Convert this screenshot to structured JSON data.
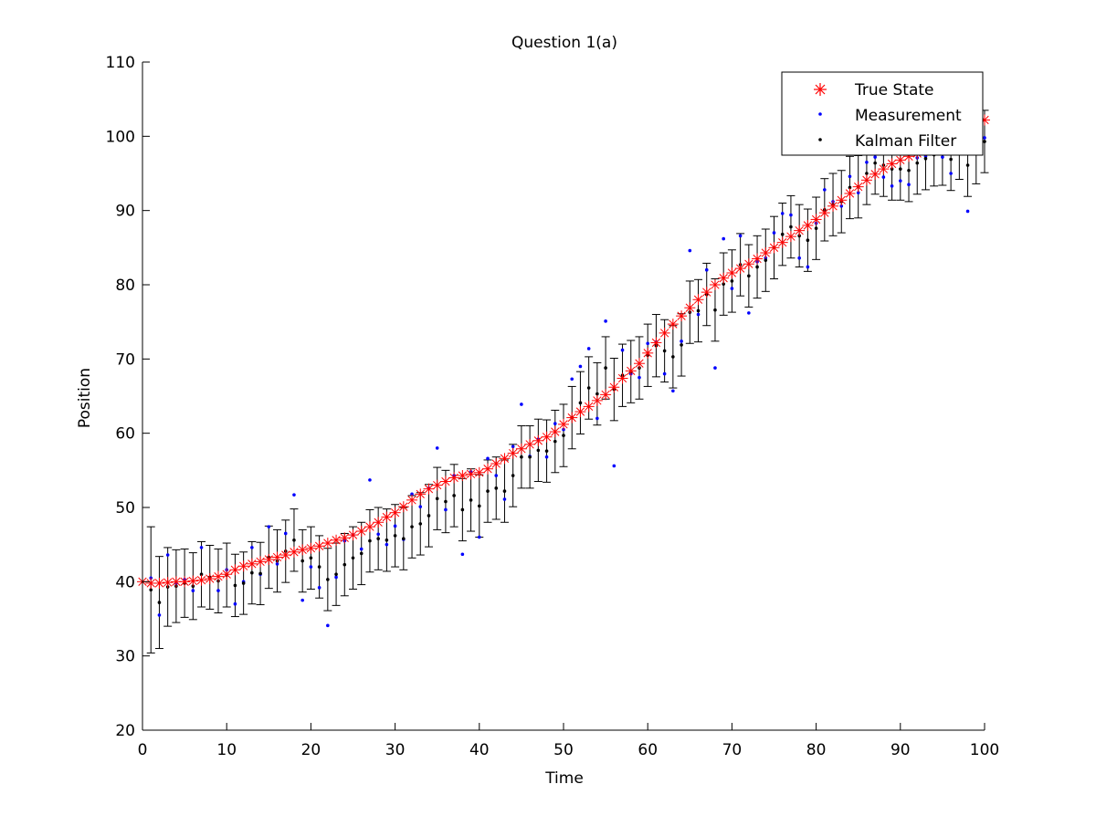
{
  "chart_data": {
    "type": "scatter",
    "title": "Question 1(a)",
    "xlabel": "Time",
    "ylabel": "Position",
    "xlim": [
      0,
      100
    ],
    "ylim": [
      20,
      110
    ],
    "xticks": [
      "0",
      "10",
      "20",
      "30",
      "40",
      "50",
      "60",
      "70",
      "80",
      "90",
      "100"
    ],
    "yticks": [
      "20",
      "30",
      "40",
      "50",
      "60",
      "70",
      "80",
      "90",
      "100",
      "110"
    ],
    "grid": false,
    "legend_position": "top-right",
    "series": [
      {
        "name": "True State",
        "marker": "asterisk",
        "color": "#ff0000",
        "x": [
          0,
          1,
          2,
          3,
          4,
          5,
          6,
          7,
          8,
          9,
          10,
          11,
          12,
          13,
          14,
          15,
          16,
          17,
          18,
          19,
          20,
          21,
          22,
          23,
          24,
          25,
          26,
          27,
          28,
          29,
          30,
          31,
          32,
          33,
          34,
          35,
          36,
          37,
          38,
          39,
          40,
          41,
          42,
          43,
          44,
          45,
          46,
          47,
          48,
          49,
          50,
          51,
          52,
          53,
          54,
          55,
          56,
          57,
          58,
          59,
          60,
          61,
          62,
          63,
          64,
          65,
          66,
          67,
          68,
          69,
          70,
          71,
          72,
          73,
          74,
          75,
          76,
          77,
          78,
          79,
          80,
          81,
          82,
          83,
          84,
          85,
          86,
          87,
          88,
          89,
          90,
          91,
          92,
          93,
          94,
          95,
          96,
          97,
          98,
          99,
          100
        ],
        "y": [
          40,
          39.8,
          39.8,
          39.9,
          40.0,
          40.0,
          40.1,
          40.2,
          40.4,
          40.7,
          41.0,
          41.6,
          42.1,
          42.4,
          42.7,
          43.0,
          43.3,
          43.6,
          44.0,
          44.3,
          44.5,
          44.8,
          45.2,
          45.6,
          45.9,
          46.3,
          46.8,
          47.4,
          48.0,
          48.7,
          49.3,
          50.1,
          51.0,
          51.8,
          52.5,
          53.0,
          53.5,
          54.0,
          54.3,
          54.5,
          54.7,
          55.2,
          55.9,
          56.6,
          57.3,
          57.9,
          58.5,
          59.0,
          59.5,
          60.2,
          61.2,
          62.1,
          62.9,
          63.6,
          64.4,
          65.2,
          66.2,
          67.4,
          68.4,
          69.4,
          70.8,
          72.2,
          73.5,
          74.7,
          75.8,
          76.9,
          78.0,
          79.0,
          80.0,
          80.9,
          81.6,
          82.2,
          82.8,
          83.5,
          84.3,
          85.0,
          85.7,
          86.5,
          87.3,
          88.0,
          88.8,
          89.7,
          90.6,
          91.4,
          92.3,
          93.2,
          94.1,
          94.9,
          95.6,
          96.3,
          96.8,
          97.3,
          97.7,
          98.1,
          98.5,
          98.9,
          99.4,
          100.0,
          100.7,
          101.4,
          102.2
        ]
      },
      {
        "name": "Measurement",
        "marker": "dot",
        "color": "#0000ff",
        "x": [
          1,
          2,
          3,
          4,
          5,
          6,
          7,
          8,
          9,
          10,
          11,
          12,
          13,
          14,
          15,
          16,
          17,
          18,
          19,
          20,
          21,
          22,
          23,
          24,
          25,
          26,
          27,
          28,
          29,
          30,
          31,
          32,
          33,
          34,
          35,
          36,
          37,
          38,
          39,
          40,
          41,
          42,
          43,
          44,
          45,
          46,
          47,
          48,
          49,
          50,
          51,
          52,
          53,
          54,
          55,
          56,
          57,
          58,
          59,
          60,
          61,
          62,
          63,
          64,
          65,
          66,
          67,
          68,
          69,
          70,
          71,
          72,
          73,
          74,
          75,
          76,
          77,
          78,
          79,
          80,
          81,
          82,
          83,
          84,
          85,
          86,
          87,
          88,
          89,
          90,
          91,
          92,
          93,
          94,
          95,
          96,
          97,
          98,
          99,
          100
        ],
        "y": [
          40.5,
          35.5,
          43.6,
          39.8,
          40.3,
          38.8,
          44.6,
          40.5,
          38.8,
          41.6,
          37.0,
          40.0,
          44.6,
          41.0,
          47.4,
          42.4,
          46.5,
          51.7,
          37.5,
          42.0,
          39.2,
          34.1,
          40.6,
          45.5,
          46.3,
          44.4,
          53.7,
          46.4,
          45.0,
          47.5,
          45.7,
          51.8,
          50.1,
          52.6,
          58.0,
          49.7,
          54.3,
          43.7,
          54.8,
          46.0,
          56.6,
          54.3,
          51.1,
          58.2,
          63.9,
          56.9,
          59.2,
          56.8,
          61.3,
          60.5,
          67.3,
          69.0,
          71.4,
          62.0,
          75.1,
          55.6,
          71.2,
          68.0,
          67.5,
          72.1,
          72.3,
          68.0,
          65.7,
          72.4,
          84.6,
          76.0,
          82.0,
          68.8,
          86.2,
          79.5,
          86.6,
          76.2,
          83.1,
          83.6,
          87.0,
          89.6,
          89.4,
          83.6,
          82.4,
          88.3,
          92.8,
          91.2,
          90.6,
          94.6,
          92.4,
          96.5,
          97.2,
          94.5,
          93.3,
          94.0,
          93.5,
          97.1,
          97.3,
          97.6,
          97.2,
          95.0,
          99.3,
          89.9,
          99.5,
          99.8
        ]
      },
      {
        "name": "Kalman Filter",
        "marker": "dot",
        "color": "#000000",
        "error_bars": true,
        "x": [
          1,
          2,
          3,
          4,
          5,
          6,
          7,
          8,
          9,
          10,
          11,
          12,
          13,
          14,
          15,
          16,
          17,
          18,
          19,
          20,
          21,
          22,
          23,
          24,
          25,
          26,
          27,
          28,
          29,
          30,
          31,
          32,
          33,
          34,
          35,
          36,
          37,
          38,
          39,
          40,
          41,
          42,
          43,
          44,
          45,
          46,
          47,
          48,
          49,
          50,
          51,
          52,
          53,
          54,
          55,
          56,
          57,
          58,
          59,
          60,
          61,
          62,
          63,
          64,
          65,
          66,
          67,
          68,
          69,
          70,
          71,
          72,
          73,
          74,
          75,
          76,
          77,
          78,
          79,
          80,
          81,
          82,
          83,
          84,
          85,
          86,
          87,
          88,
          89,
          90,
          91,
          92,
          93,
          94,
          95,
          96,
          97,
          98,
          99,
          100
        ],
        "y": [
          38.9,
          37.2,
          39.3,
          39.4,
          39.8,
          39.4,
          41.0,
          40.6,
          40.1,
          40.9,
          39.5,
          39.8,
          41.2,
          41.1,
          43.3,
          42.8,
          44.1,
          45.6,
          42.8,
          43.2,
          42.0,
          40.3,
          41.0,
          42.3,
          43.2,
          43.8,
          45.5,
          45.8,
          45.6,
          46.2,
          45.8,
          47.4,
          47.8,
          48.9,
          51.2,
          50.8,
          51.6,
          49.7,
          51.0,
          50.2,
          52.2,
          52.6,
          52.2,
          54.3,
          56.8,
          56.8,
          57.7,
          57.6,
          58.9,
          59.7,
          62.1,
          64.1,
          66.1,
          65.3,
          68.8,
          65.9,
          67.8,
          68.3,
          68.8,
          70.5,
          71.8,
          71.1,
          70.3,
          71.9,
          76.3,
          76.5,
          78.7,
          76.6,
          80.1,
          80.5,
          82.7,
          81.2,
          82.4,
          83.3,
          85.0,
          86.8,
          87.8,
          86.6,
          86.0,
          87.6,
          90.1,
          90.8,
          91.2,
          93.1,
          93.2,
          95.0,
          96.4,
          96.1,
          95.6,
          95.6,
          95.4,
          96.4,
          97.0,
          97.5,
          97.6,
          96.9,
          98.4,
          96.1,
          97.8,
          99.3
        ],
        "error": [
          8.5,
          6.2,
          5.3,
          4.9,
          4.6,
          4.5,
          4.4,
          4.3,
          4.3,
          4.3,
          4.2,
          4.2,
          4.2,
          4.2,
          4.2,
          4.2,
          4.2,
          4.2,
          4.2,
          4.2,
          4.2,
          4.2,
          4.2,
          4.2,
          4.2,
          4.2,
          4.2,
          4.2,
          4.2,
          4.2,
          4.2,
          4.2,
          4.2,
          4.2,
          4.2,
          4.2,
          4.2,
          4.2,
          4.2,
          4.2,
          4.2,
          4.2,
          4.2,
          4.2,
          4.2,
          4.2,
          4.2,
          4.2,
          4.2,
          4.2,
          4.2,
          4.2,
          4.2,
          4.2,
          4.2,
          4.2,
          4.2,
          4.2,
          4.2,
          4.2,
          4.2,
          4.2,
          4.2,
          4.2,
          4.2,
          4.2,
          4.2,
          4.2,
          4.2,
          4.2,
          4.2,
          4.2,
          4.2,
          4.2,
          4.2,
          4.2,
          4.2,
          4.2,
          4.2,
          4.2,
          4.2,
          4.2,
          4.2,
          4.2,
          4.2,
          4.2,
          4.2,
          4.2,
          4.2,
          4.2,
          4.2,
          4.2,
          4.2,
          4.2,
          4.2,
          4.2,
          4.2,
          4.2,
          4.2,
          4.2
        ]
      }
    ]
  }
}
